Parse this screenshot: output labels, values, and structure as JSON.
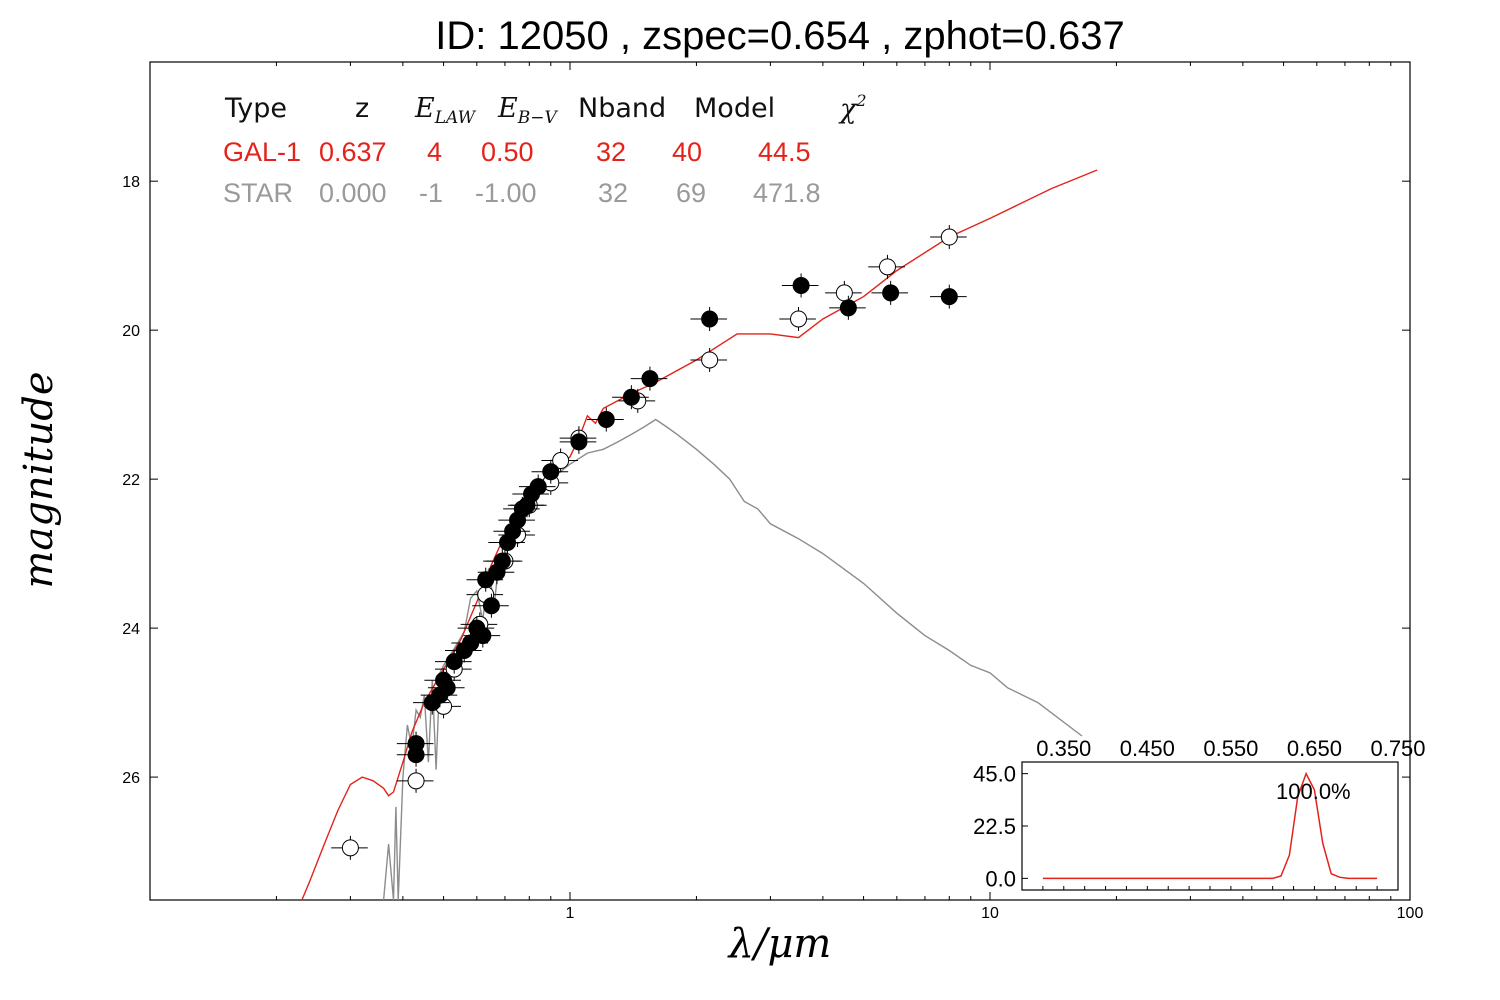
{
  "title": "ID:  12050 , zspec=0.654 , zphot=0.637",
  "table": {
    "headers": [
      "Type",
      "z",
      "E_LAW",
      "E_B-V",
      "Nband",
      "Model",
      "χ²"
    ],
    "rows": [
      {
        "type": "GAL-1",
        "z": "0.637",
        "e_law": "4",
        "e_bv": "0.50",
        "nband": "32",
        "model": "40",
        "chi2": "44.5",
        "color": "#e3231b"
      },
      {
        "type": "STAR",
        "z": "0.000",
        "e_law": "-1",
        "e_bv": "-1.00",
        "nband": "32",
        "model": "69",
        "chi2": "471.8",
        "color": "#9a9a9a"
      }
    ]
  },
  "chart_data": [
    {
      "type": "scatter",
      "xlabel": "λ/μm",
      "ylabel": "magnitude",
      "xscale": "log",
      "xlim": [
        0.1,
        100
      ],
      "ylim": [
        27.65,
        16.4
      ],
      "xticks": [
        "1",
        "10",
        "100"
      ],
      "yticks": [
        "18",
        "20",
        "22",
        "24",
        "26"
      ],
      "colors": {
        "gal": "#e3231b",
        "star": "#8c8c8c",
        "obs": "#000000",
        "model_pts": "#ffffff"
      },
      "series": [
        {
          "name": "GAL-1",
          "kind": "line",
          "x": [
            0.23,
            0.24,
            0.26,
            0.28,
            0.3,
            0.32,
            0.34,
            0.36,
            0.37,
            0.38,
            0.4,
            0.42,
            0.45,
            0.5,
            0.55,
            0.6,
            0.65,
            0.7,
            0.75,
            0.8,
            0.9,
            1.0,
            1.05,
            1.1,
            1.15,
            1.2,
            1.4,
            1.6,
            2.0,
            2.5,
            3.0,
            3.5,
            4.0,
            5.0,
            6.0,
            8.0,
            10.0,
            14.0,
            18.0
          ],
          "y": [
            27.7,
            27.4,
            26.9,
            26.45,
            26.1,
            26.0,
            26.05,
            26.15,
            26.25,
            26.2,
            25.8,
            25.4,
            25.0,
            24.55,
            24.15,
            23.65,
            23.15,
            22.75,
            22.45,
            22.2,
            21.95,
            21.7,
            21.45,
            21.15,
            21.25,
            21.05,
            20.85,
            20.7,
            20.4,
            20.05,
            20.05,
            20.1,
            19.85,
            19.55,
            19.2,
            18.75,
            18.5,
            18.1,
            17.85
          ]
        },
        {
          "name": "STAR",
          "kind": "line",
          "x": [
            0.36,
            0.37,
            0.38,
            0.385,
            0.39,
            0.4,
            0.41,
            0.42,
            0.43,
            0.44,
            0.45,
            0.46,
            0.47,
            0.48,
            0.49,
            0.5,
            0.52,
            0.54,
            0.56,
            0.58,
            0.6,
            0.62,
            0.64,
            0.66,
            0.68,
            0.7,
            0.72,
            0.75,
            0.8,
            0.85,
            0.9,
            1.0,
            1.1,
            1.2,
            1.3,
            1.4,
            1.5,
            1.6,
            1.7,
            1.8,
            2.0,
            2.2,
            2.4,
            2.6,
            2.8,
            3.0,
            3.5,
            4.0,
            5.0,
            6.0,
            7.0,
            8.0,
            9.0,
            10.0,
            11.0,
            13.0
          ],
          "y": [
            28.5,
            26.9,
            28.5,
            26.4,
            28.5,
            26.0,
            25.3,
            25.6,
            25.1,
            25.2,
            24.9,
            25.8,
            24.7,
            25.9,
            24.6,
            24.5,
            24.35,
            24.2,
            24.05,
            23.6,
            23.5,
            23.9,
            23.2,
            23.7,
            23.0,
            23.2,
            22.7,
            22.4,
            22.2,
            22.05,
            22.0,
            21.8,
            21.65,
            21.6,
            21.5,
            21.4,
            21.3,
            21.2,
            21.3,
            21.4,
            21.6,
            21.8,
            22.0,
            22.3,
            22.4,
            22.6,
            22.8,
            23.0,
            23.4,
            23.8,
            24.1,
            24.3,
            24.5,
            24.6,
            24.8,
            25.0
          ]
        },
        {
          "name": "observed",
          "kind": "points",
          "x": [
            0.43,
            0.43,
            0.47,
            0.49,
            0.5,
            0.51,
            0.53,
            0.56,
            0.58,
            0.6,
            0.62,
            0.63,
            0.65,
            0.67,
            0.69,
            0.71,
            0.73,
            0.75,
            0.77,
            0.79,
            0.81,
            0.84,
            0.9,
            1.05,
            1.22,
            1.4,
            1.55,
            2.15,
            3.55,
            4.6,
            5.8,
            8.0
          ],
          "y": [
            25.55,
            25.7,
            25.0,
            24.9,
            24.7,
            24.8,
            24.45,
            24.3,
            24.2,
            24.0,
            24.1,
            23.35,
            23.7,
            23.25,
            23.1,
            22.85,
            22.7,
            22.55,
            22.4,
            22.35,
            22.2,
            22.1,
            21.9,
            21.5,
            21.2,
            20.9,
            20.65,
            19.85,
            19.4,
            19.7,
            19.5,
            19.55
          ]
        },
        {
          "name": "model",
          "kind": "open_points",
          "x": [
            0.3,
            0.43,
            0.5,
            0.53,
            0.58,
            0.61,
            0.63,
            0.7,
            0.75,
            0.8,
            0.9,
            0.95,
            1.05,
            1.45,
            2.15,
            3.5,
            4.5,
            5.7,
            8.0
          ],
          "y": [
            26.95,
            26.05,
            25.05,
            24.55,
            24.2,
            23.95,
            23.55,
            23.1,
            22.75,
            22.35,
            22.05,
            21.75,
            21.45,
            20.95,
            20.4,
            19.85,
            19.5,
            19.15,
            18.75
          ]
        }
      ]
    },
    {
      "type": "line",
      "xlim": [
        0.3,
        0.75
      ],
      "ylim": [
        -5,
        50
      ],
      "xticks": [
        "0.350",
        "0.450",
        "0.550",
        "0.650",
        "0.750"
      ],
      "yticks": [
        "0.0",
        "22.5",
        "45.0"
      ],
      "annotation": "100.0%",
      "series": [
        {
          "kind": "line",
          "x": [
            0.325,
            0.45,
            0.55,
            0.6,
            0.61,
            0.62,
            0.63,
            0.64,
            0.65,
            0.66,
            0.67,
            0.68,
            0.69,
            0.7,
            0.725
          ],
          "y": [
            0.0,
            0.0,
            0.0,
            0.0,
            1.0,
            10.0,
            35.0,
            45.0,
            38.0,
            15.0,
            2.0,
            0.5,
            0.0,
            0.0,
            0.0
          ]
        }
      ]
    }
  ]
}
